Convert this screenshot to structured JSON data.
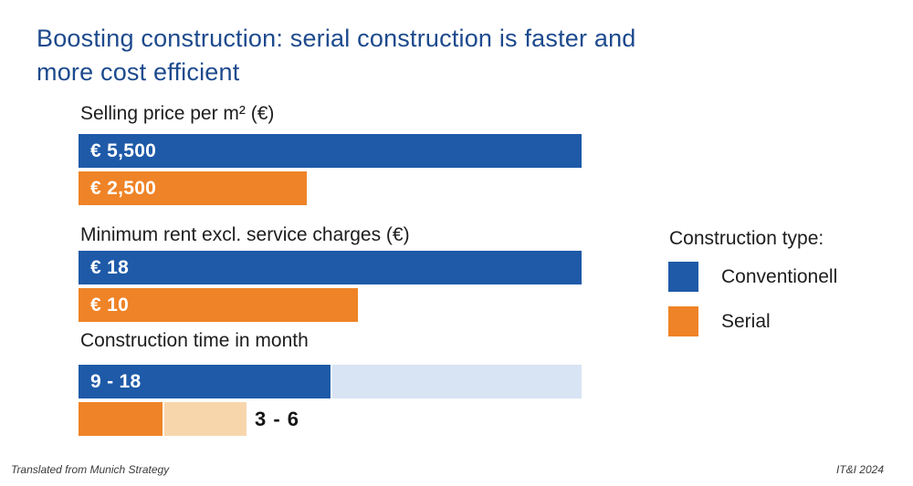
{
  "title": {
    "lines": [
      "Boosting construction: serial construction is faster and",
      "more cost efficient"
    ],
    "color": "#1d4a8d"
  },
  "legend": {
    "title": "Construction type:",
    "items": [
      {
        "label": "Conventionell",
        "color": "#1e5aa8"
      },
      {
        "label": "Serial",
        "color": "#ef8327"
      }
    ]
  },
  "footer": {
    "left": "Translated from Munich Strategy",
    "right": "IT&I 2024"
  },
  "chart_data": {
    "type": "bar",
    "orientation": "horizontal",
    "grid": false,
    "legend_position": "right",
    "series": [
      {
        "name": "Conventionell",
        "color": "#1e5aa8",
        "range_color": "#d8e4f4"
      },
      {
        "name": "Serial",
        "color": "#ef8327",
        "range_color": "#f8d6ac"
      }
    ],
    "groups": [
      {
        "label": "Selling price per m² (€)",
        "bars": [
          {
            "series": "Conventionell",
            "value": 5500,
            "display": "€ 5,500",
            "label_position": "inside"
          },
          {
            "series": "Serial",
            "value": 2500,
            "display": "€ 2,500",
            "label_position": "inside"
          }
        ]
      },
      {
        "label": "Minimum rent excl. service charges (€)",
        "bars": [
          {
            "series": "Conventionell",
            "value": 18,
            "display": "€ 18",
            "label_position": "inside"
          },
          {
            "series": "Serial",
            "value": 10,
            "display": "€ 10",
            "label_position": "inside"
          }
        ]
      },
      {
        "label": "Construction time in month",
        "bars": [
          {
            "series": "Conventionell",
            "value_min": 9,
            "value_max": 18,
            "display": "9 - 18",
            "label_position": "inside"
          },
          {
            "series": "Serial",
            "value_min": 3,
            "value_max": 6,
            "display": "3 - 6",
            "label_position": "outside"
          }
        ]
      }
    ]
  }
}
